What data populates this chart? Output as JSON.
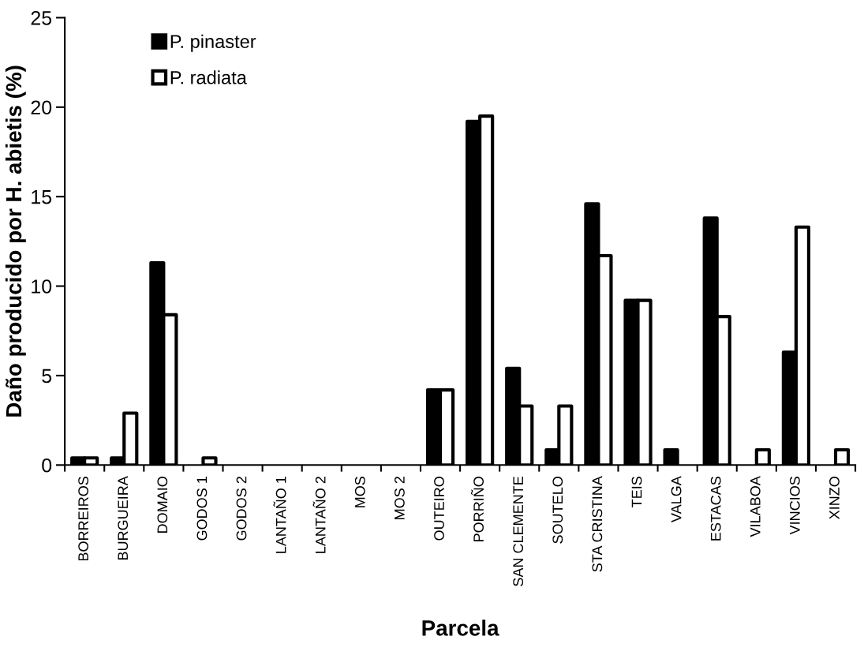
{
  "chart_data": {
    "type": "bar",
    "xlabel": "Parcela",
    "ylabel": "Daño producido por H. abietis (%)",
    "categories": [
      "BORREIROS",
      "BURGUEIRA",
      "DOMAIO",
      "GODOS 1",
      "GODOS 2",
      "LANTAÑO 1",
      "LANTAÑO 2",
      "MOS",
      "MOS 2",
      "OUTEIRO",
      "PORRIÑO",
      "SAN CLEMENTE",
      "SOUTELO",
      "STA CRISTINA",
      "TEIS",
      "VALGA",
      "ESTACAS",
      "VILABOA",
      "VINCIOS",
      "XINZO"
    ],
    "series": [
      {
        "name": "P. pinaster",
        "color": "#000000",
        "values": [
          0.4,
          0.4,
          11.3,
          0,
          0,
          0,
          0,
          0,
          0,
          4.2,
          19.2,
          5.4,
          0.85,
          14.6,
          9.2,
          0.85,
          13.8,
          0,
          6.3,
          0
        ]
      },
      {
        "name": "P. radiata",
        "color": "#ffffff",
        "values": [
          0.4,
          2.9,
          8.4,
          0.4,
          0,
          0,
          0,
          0,
          0,
          4.2,
          19.5,
          3.3,
          3.3,
          11.7,
          9.2,
          0,
          8.3,
          0.85,
          13.3,
          0.85
        ]
      }
    ],
    "ylim": [
      0,
      25
    ],
    "yticks": [
      0,
      5,
      10,
      15,
      20,
      25
    ],
    "grid": false,
    "legend": "top left"
  }
}
